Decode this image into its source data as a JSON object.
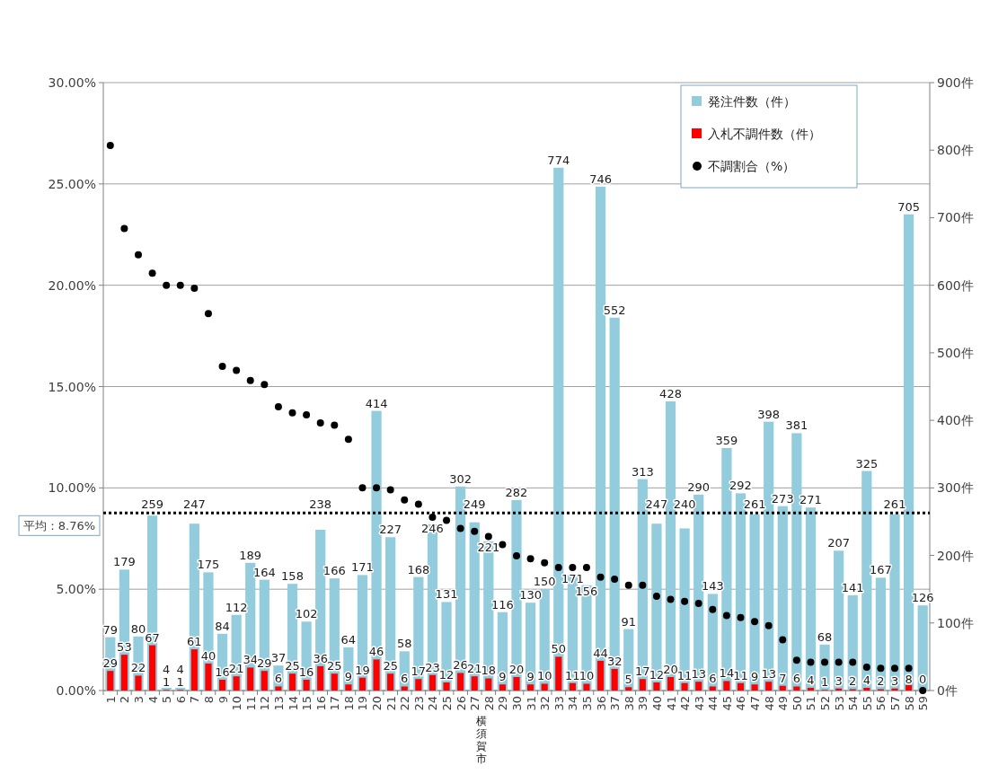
{
  "chart_data": {
    "type": "bar",
    "categories": [
      "1",
      "2",
      "3",
      "4",
      "5",
      "6",
      "7",
      "8",
      "9",
      "10",
      "11",
      "12",
      "13",
      "14",
      "15",
      "16",
      "17",
      "18",
      "19",
      "20",
      "21",
      "22",
      "23",
      "24",
      "25",
      "26",
      "27",
      "28",
      "29",
      "30",
      "31",
      "32",
      "33",
      "34",
      "35",
      "36",
      "37",
      "38",
      "39",
      "40",
      "41",
      "42",
      "43",
      "44",
      "45",
      "46",
      "47",
      "48",
      "49",
      "50",
      "51",
      "52",
      "53",
      "54",
      "55",
      "56",
      "57",
      "58",
      "59"
    ],
    "series": [
      {
        "name": "発注件数（件）",
        "axis": "y2",
        "color": "#93cddd",
        "values": [
          79,
          179,
          80,
          259,
          4,
          4,
          247,
          175,
          84,
          112,
          189,
          164,
          37,
          158,
          102,
          238,
          166,
          64,
          171,
          414,
          227,
          58,
          168,
          246,
          131,
          302,
          249,
          221,
          116,
          282,
          130,
          150,
          774,
          171,
          156,
          746,
          552,
          91,
          313,
          247,
          428,
          240,
          290,
          143,
          359,
          292,
          261,
          398,
          273,
          381,
          271,
          68,
          207,
          141,
          325,
          167,
          261,
          705,
          126
        ],
        "value_labels": [
          "79",
          "179",
          "80",
          "259",
          "4",
          "4",
          "247",
          "175",
          "84",
          "112",
          "189",
          "164",
          "37",
          "158",
          "102",
          "238",
          "166",
          "64",
          "171",
          "414",
          "227",
          "58",
          "168",
          "246",
          "131",
          "302",
          "249",
          "221",
          "116",
          "282",
          "130",
          "150",
          "774",
          "171",
          "156",
          "746",
          "552",
          "91",
          "313",
          "247",
          "428",
          "240",
          "290",
          "143",
          "359",
          "292",
          "261",
          "398",
          "273",
          "381",
          "271",
          "68",
          "207",
          "141",
          "325",
          "167",
          "261",
          "705",
          "126"
        ]
      },
      {
        "name": "入札不調件数（件）",
        "axis": "y2",
        "color": "#ff0000",
        "values": [
          29,
          53,
          22,
          67,
          1,
          1,
          61,
          40,
          16,
          21,
          34,
          29,
          6,
          25,
          16,
          36,
          25,
          9,
          19,
          46,
          25,
          6,
          17,
          23,
          12,
          26,
          21,
          18,
          9,
          20,
          9,
          10,
          50,
          11,
          10,
          44,
          32,
          5,
          17,
          12,
          20,
          11,
          13,
          6,
          14,
          11,
          9,
          13,
          7,
          6,
          4,
          1,
          3,
          2,
          4,
          2,
          3,
          8,
          0
        ],
        "value_labels": [
          "29",
          "53",
          "22",
          "67",
          "1",
          "1",
          "61",
          "40",
          "16",
          "21",
          "34",
          "29",
          "6",
          "25",
          "16",
          "36",
          "25",
          "9",
          "19",
          "46",
          "25",
          "6",
          "17",
          "23",
          "12",
          "26",
          "21",
          "18",
          "9",
          "20",
          "9",
          "10",
          "50",
          "11",
          "10",
          "44",
          "32",
          "5",
          "17",
          "12",
          "20",
          "11",
          "13",
          "6",
          "14",
          "11",
          "9",
          "13",
          "7",
          "6",
          "4",
          "1",
          "3",
          "2",
          "4",
          "2",
          "3",
          "8",
          "0"
        ]
      },
      {
        "name": "不調割合（%）",
        "type": "scatter",
        "axis": "y",
        "color": "#000000",
        "marker": "circle",
        "values": [
          26.9,
          22.8,
          21.5,
          20.6,
          20.0,
          20.0,
          19.85,
          18.6,
          16.0,
          15.8,
          15.3,
          15.1,
          14.0,
          13.7,
          13.6,
          13.2,
          13.1,
          12.4,
          10.0,
          10.0,
          9.9,
          9.4,
          9.2,
          8.55,
          8.4,
          8.0,
          7.85,
          7.6,
          7.2,
          6.65,
          6.5,
          6.3,
          6.07,
          6.07,
          6.07,
          5.6,
          5.5,
          5.2,
          5.2,
          4.65,
          4.5,
          4.4,
          4.3,
          4.0,
          3.7,
          3.6,
          3.4,
          3.2,
          2.5,
          1.5,
          1.4,
          1.4,
          1.4,
          1.4,
          1.15,
          1.1,
          1.1,
          1.1,
          0
        ]
      }
    ],
    "ylim": [
      0,
      30
    ],
    "yticks": [
      {
        "value": 0,
        "label": "0.00%"
      },
      {
        "value": 5,
        "label": "5.00%"
      },
      {
        "value": 10,
        "label": "10.00%"
      },
      {
        "value": 15,
        "label": "15.00%"
      },
      {
        "value": 20,
        "label": "20.00%"
      },
      {
        "value": 25,
        "label": "25.00%"
      },
      {
        "value": 30,
        "label": "30.00%"
      }
    ],
    "y2lim": [
      0,
      900
    ],
    "y2ticks": [
      {
        "value": 0,
        "label": "0件"
      },
      {
        "value": 100,
        "label": "100件"
      },
      {
        "value": 200,
        "label": "200件"
      },
      {
        "value": 300,
        "label": "300件"
      },
      {
        "value": 400,
        "label": "400件"
      },
      {
        "value": 500,
        "label": "500件"
      },
      {
        "value": 600,
        "label": "600件"
      },
      {
        "value": 700,
        "label": "700件"
      },
      {
        "value": 800,
        "label": "800件"
      },
      {
        "value": 900,
        "label": "900件"
      }
    ],
    "ref_lines": [
      {
        "axis": "y",
        "value": 8.76,
        "label": "平均：8.76%",
        "color": "#000000",
        "line_style": "dotted"
      }
    ],
    "annotations": [
      "横須賀市"
    ],
    "grid": "y",
    "legend": "top right"
  }
}
